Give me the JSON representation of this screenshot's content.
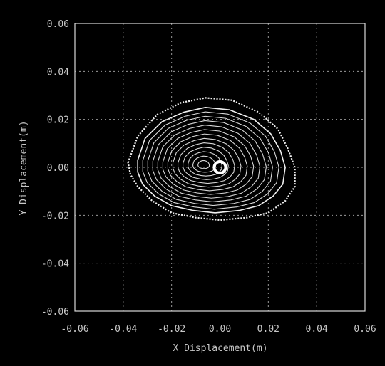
{
  "chart_data": {
    "type": "line",
    "title": "",
    "xlabel": "X Displacement(m)",
    "ylabel": "Y Displacement(m)",
    "xlim": [
      -0.06,
      0.06
    ],
    "ylim": [
      -0.06,
      0.06
    ],
    "xticks": [
      -0.06,
      -0.04,
      -0.02,
      0.0,
      0.02,
      0.04,
      0.06
    ],
    "yticks": [
      -0.06,
      -0.04,
      -0.02,
      0.0,
      0.02,
      0.04,
      0.06
    ],
    "xtick_labels": [
      "-0.06",
      "-0.04",
      "-0.02",
      "0.00",
      "0.02",
      "0.04",
      "0.06"
    ],
    "ytick_labels": [
      "-0.06",
      "-0.04",
      "-0.02",
      "0.00",
      "0.02",
      "0.04",
      "0.06"
    ],
    "grid": true,
    "colors": {
      "background": "#000000",
      "frame": "#d8d8d8",
      "grid": "#9a9a9a",
      "trajectory": "#f0f0f0",
      "marker": "#ffffff"
    },
    "trajectory_center": [
      -0.007,
      0.001
    ],
    "end_marker": [
      0.0,
      0.0
    ],
    "series": [
      {
        "x": [
          -0.038,
          -0.034,
          -0.026,
          -0.016,
          -0.006,
          0.005,
          0.016,
          0.024,
          0.028,
          0.031,
          0.031,
          0.027,
          0.02,
          0.011,
          0.0,
          -0.01,
          -0.02,
          -0.028,
          -0.034,
          -0.037,
          -0.038
        ],
        "y": [
          0.002,
          0.013,
          0.022,
          0.027,
          0.029,
          0.028,
          0.023,
          0.016,
          0.008,
          0.0,
          -0.008,
          -0.014,
          -0.019,
          -0.021,
          -0.022,
          -0.021,
          -0.019,
          -0.014,
          -0.008,
          -0.003,
          0.002
        ]
      },
      {
        "x": [
          -0.034,
          -0.031,
          -0.024,
          -0.015,
          -0.006,
          0.004,
          0.014,
          0.021,
          0.025,
          0.027,
          0.026,
          0.022,
          0.016,
          0.008,
          -0.002,
          -0.011,
          -0.02,
          -0.027,
          -0.032,
          -0.034,
          -0.034
        ],
        "y": [
          0.003,
          0.012,
          0.019,
          0.023,
          0.025,
          0.024,
          0.02,
          0.014,
          0.007,
          0.0,
          -0.007,
          -0.012,
          -0.016,
          -0.018,
          -0.019,
          -0.018,
          -0.016,
          -0.012,
          -0.007,
          -0.002,
          0.003
        ]
      }
    ]
  }
}
